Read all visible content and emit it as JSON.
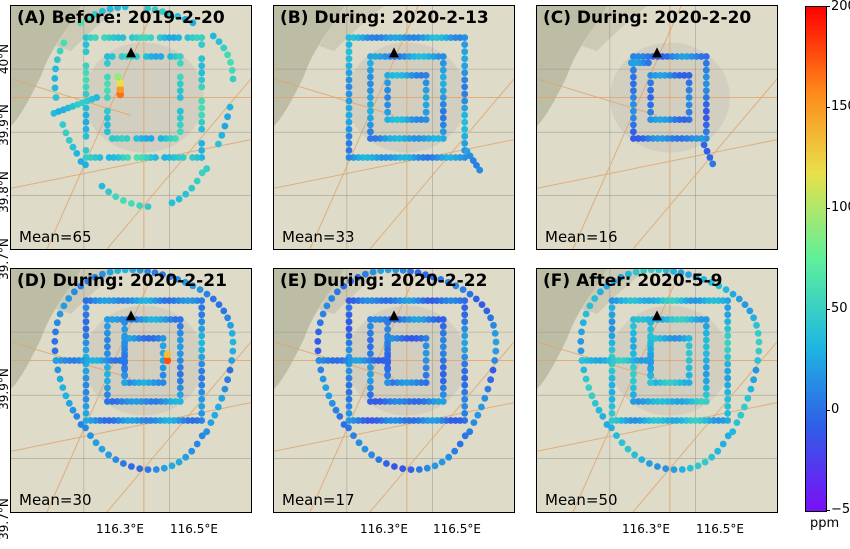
{
  "chart_data": {
    "type": "scatter",
    "panels": [
      {
        "title": "(A) Before: 2019-2-20",
        "mean_label": "Mean=65",
        "route": "rings_partial",
        "base_value": 62,
        "hotspots": [
          {
            "lon": 116.335,
            "lat": 39.91,
            "value": 180
          },
          {
            "lon": 116.335,
            "lat": 39.918,
            "value": 170
          },
          {
            "lon": 116.335,
            "lat": 39.928,
            "value": 150
          },
          {
            "lon": 116.33,
            "lat": 39.938,
            "value": 120
          }
        ]
      },
      {
        "title": "(B) During: 2020-2-13",
        "mean_label": "Mean=33",
        "route": "rings_middle",
        "base_value": 35,
        "hotspots": []
      },
      {
        "title": "(C) During: 2020-2-20",
        "mean_label": "Mean=16",
        "route": "rings_inner",
        "base_value": 18,
        "hotspots": []
      },
      {
        "title": "(D) During: 2020-2-21",
        "mean_label": "Mean=30",
        "route": "rings_all",
        "base_value": 28,
        "hotspots": [
          {
            "lon": 116.445,
            "lat": 39.905,
            "value": 185
          },
          {
            "lon": 116.445,
            "lat": 39.915,
            "value": 160
          }
        ]
      },
      {
        "title": "(E) During: 2020-2-22",
        "mean_label": "Mean=17",
        "route": "rings_all",
        "base_value": 17,
        "hotspots": []
      },
      {
        "title": "(F) After: 2020-5-9",
        "mean_label": "Mean=50",
        "route": "rings_all",
        "base_value": 50,
        "hotspots": []
      }
    ],
    "xticks": [
      "116.3°E",
      "116.5°E"
    ],
    "yticks_top": [
      "40°N",
      "39.9°N",
      "39.8°N",
      "39.7°N"
    ],
    "yticks_bottom": [
      "39.9°N",
      "39.7°N"
    ],
    "marker": "black triangle",
    "colorbar": {
      "label": "ppm",
      "range": [
        -50,
        200
      ],
      "ticks": [
        "200",
        "150",
        "100",
        "50",
        "0",
        "−50"
      ],
      "colormap": "rainbow"
    }
  }
}
